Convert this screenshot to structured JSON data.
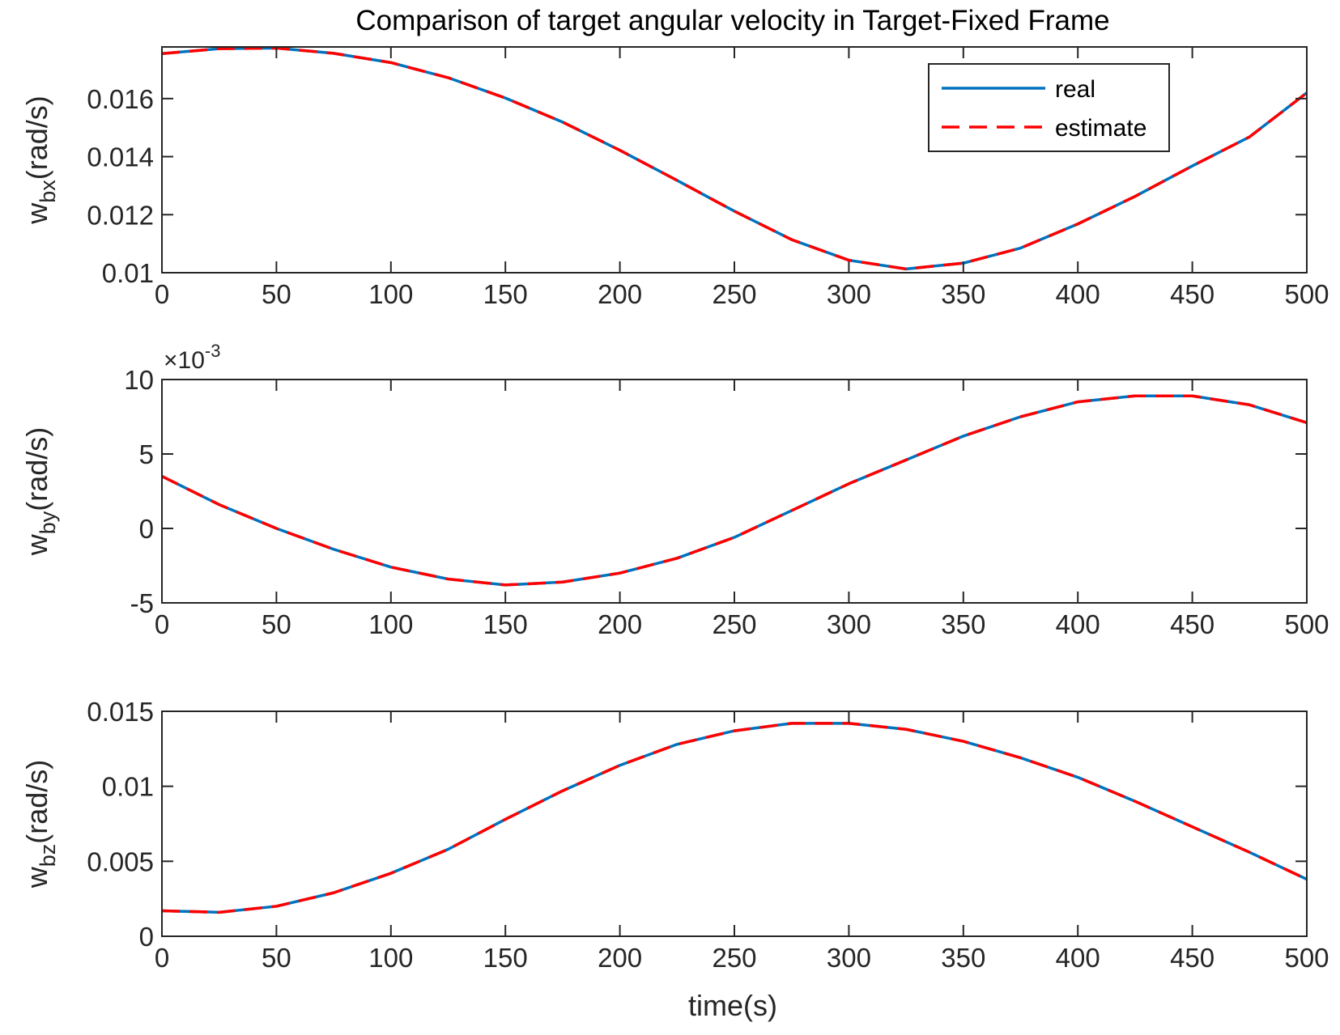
{
  "figure": {
    "title": "Comparison of target angular velocity in Target-Fixed Frame",
    "xlabel": "time(s)"
  },
  "legend": {
    "entries": [
      {
        "label": "real",
        "color": "#0072BD",
        "style": "solid"
      },
      {
        "label": "estimate",
        "color": "#FF0000",
        "style": "dashed"
      }
    ]
  },
  "chart_data": [
    {
      "type": "line",
      "ylabel_main": "w",
      "ylabel_sub": "bx",
      "ylabel_unit": "(rad/s)",
      "xlim": [
        0,
        500
      ],
      "ylim": [
        0.01,
        0.01778
      ],
      "xticks": [
        "0",
        "50",
        "100",
        "150",
        "200",
        "250",
        "300",
        "350",
        "400",
        "450",
        "500"
      ],
      "yticks": [
        {
          "v": 0.01,
          "label": "0.01"
        },
        {
          "v": 0.012,
          "label": "0.012"
        },
        {
          "v": 0.014,
          "label": "0.014"
        },
        {
          "v": 0.016,
          "label": "0.016"
        }
      ],
      "legend_position": "top-right",
      "x": [
        0,
        25,
        50,
        75,
        100,
        125,
        150,
        175,
        200,
        225,
        250,
        275,
        300,
        325,
        350,
        375,
        400,
        425,
        450,
        475,
        500
      ],
      "series": [
        {
          "name": "real",
          "values": [
            0.01755,
            0.01772,
            0.01774,
            0.01756,
            0.01724,
            0.01672,
            0.01602,
            0.01519,
            0.01422,
            0.01318,
            0.01212,
            0.01114,
            0.01043,
            0.01013,
            0.01033,
            0.01085,
            0.01168,
            0.01263,
            0.01368,
            0.01468,
            0.0162
          ]
        },
        {
          "name": "estimate",
          "values": [
            0.01755,
            0.01772,
            0.01774,
            0.01756,
            0.01724,
            0.01672,
            0.01602,
            0.01519,
            0.01422,
            0.01318,
            0.01212,
            0.01114,
            0.01043,
            0.01013,
            0.01033,
            0.01085,
            0.01168,
            0.01263,
            0.01368,
            0.01468,
            0.0162
          ]
        }
      ]
    },
    {
      "type": "line",
      "ylabel_main": "w",
      "ylabel_sub": "by",
      "ylabel_unit": "(rad/s)",
      "exponent_label": "×10",
      "exponent_power": "-3",
      "xlim": [
        0,
        500
      ],
      "ylim": [
        -5,
        10
      ],
      "xticks": [
        "0",
        "50",
        "100",
        "150",
        "200",
        "250",
        "300",
        "350",
        "400",
        "450",
        "500"
      ],
      "yticks": [
        {
          "v": -5,
          "label": "-5"
        },
        {
          "v": 0,
          "label": "0"
        },
        {
          "v": 5,
          "label": "5"
        },
        {
          "v": 10,
          "label": "10"
        }
      ],
      "x": [
        0,
        25,
        50,
        75,
        100,
        125,
        150,
        175,
        200,
        225,
        250,
        275,
        300,
        325,
        350,
        375,
        400,
        425,
        450,
        475,
        500
      ],
      "series": [
        {
          "name": "real",
          "values": [
            3.5,
            1.6,
            0.0,
            -1.4,
            -2.6,
            -3.4,
            -3.8,
            -3.6,
            -3.0,
            -2.0,
            -0.6,
            1.2,
            3.0,
            4.6,
            6.2,
            7.5,
            8.5,
            8.9,
            8.9,
            8.3,
            7.1
          ]
        },
        {
          "name": "estimate",
          "values": [
            3.5,
            1.6,
            0.0,
            -1.4,
            -2.6,
            -3.4,
            -3.8,
            -3.6,
            -3.0,
            -2.0,
            -0.6,
            1.2,
            3.0,
            4.6,
            6.2,
            7.5,
            8.5,
            8.9,
            8.9,
            8.3,
            7.1
          ]
        }
      ]
    },
    {
      "type": "line",
      "ylabel_main": "w",
      "ylabel_sub": "bz",
      "ylabel_unit": "(rad/s)",
      "xlim": [
        0,
        500
      ],
      "ylim": [
        0,
        0.015
      ],
      "xticks": [
        "0",
        "50",
        "100",
        "150",
        "200",
        "250",
        "300",
        "350",
        "400",
        "450",
        "500"
      ],
      "yticks": [
        {
          "v": 0,
          "label": "0"
        },
        {
          "v": 0.005,
          "label": "0.005"
        },
        {
          "v": 0.01,
          "label": "0.01"
        },
        {
          "v": 0.015,
          "label": "0.015"
        }
      ],
      "x": [
        0,
        25,
        50,
        75,
        100,
        125,
        150,
        175,
        200,
        225,
        250,
        275,
        300,
        325,
        350,
        375,
        400,
        425,
        450,
        475,
        500
      ],
      "series": [
        {
          "name": "real",
          "values": [
            0.0017,
            0.0016,
            0.002,
            0.0029,
            0.0042,
            0.0058,
            0.0078,
            0.0097,
            0.0114,
            0.0128,
            0.0137,
            0.0142,
            0.0142,
            0.0138,
            0.013,
            0.0119,
            0.0106,
            0.009,
            0.0073,
            0.0056,
            0.0038
          ]
        },
        {
          "name": "estimate",
          "values": [
            0.0017,
            0.0016,
            0.002,
            0.0029,
            0.0042,
            0.0058,
            0.0078,
            0.0097,
            0.0114,
            0.0128,
            0.0137,
            0.0142,
            0.0142,
            0.0138,
            0.013,
            0.0119,
            0.0106,
            0.009,
            0.0073,
            0.0056,
            0.0038
          ]
        }
      ]
    }
  ]
}
